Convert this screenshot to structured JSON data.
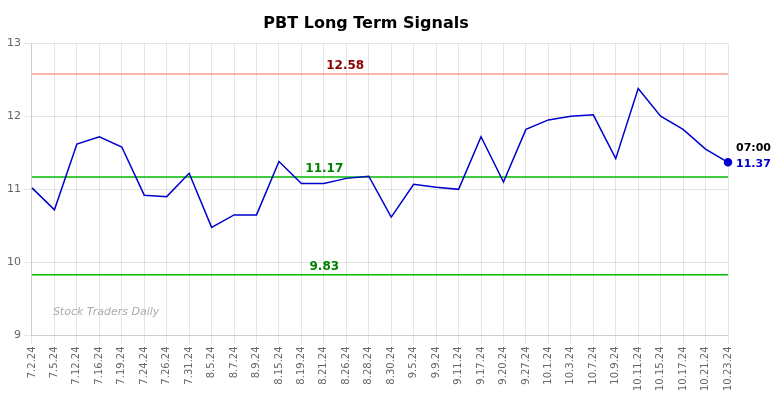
{
  "chart_data": {
    "type": "line",
    "title": "PBT Long Term Signals",
    "categories": [
      "7.2.24",
      "7.5.24",
      "7.12.24",
      "7.16.24",
      "7.19.24",
      "7.24.24",
      "7.26.24",
      "7.31.24",
      "8.5.24",
      "8.7.24",
      "8.9.24",
      "8.15.24",
      "8.19.24",
      "8.21.24",
      "8.26.24",
      "8.28.24",
      "8.30.24",
      "9.5.24",
      "9.9.24",
      "9.11.24",
      "9.17.24",
      "9.20.24",
      "9.27.24",
      "10.1.24",
      "10.3.24",
      "10.7.24",
      "10.9.24",
      "10.11.24",
      "10.15.24",
      "10.17.24",
      "10.21.24",
      "10.23.24"
    ],
    "values": [
      11.02,
      10.72,
      11.62,
      11.72,
      11.58,
      10.92,
      10.9,
      11.22,
      10.48,
      10.65,
      10.65,
      11.38,
      11.08,
      11.08,
      11.15,
      11.18,
      10.62,
      11.07,
      11.03,
      11.0,
      11.72,
      11.1,
      11.82,
      11.95,
      12.0,
      12.02,
      11.42,
      12.38,
      12.0,
      11.82,
      11.55,
      11.37
    ],
    "color": "#0000cc",
    "ylim": [
      9,
      13
    ],
    "yticks": [
      9,
      10,
      11,
      12,
      13
    ],
    "grid": true,
    "reference_lines": [
      {
        "value": 12.58,
        "color": "#ff9999",
        "label_color": "darkred"
      },
      {
        "value": 11.17,
        "color": "#00bb00",
        "label_color": "green"
      },
      {
        "value": 9.83,
        "color": "#00bb00",
        "label_color": "green"
      }
    ],
    "annotations": [
      {
        "text": "07:00",
        "color": "black"
      },
      {
        "text": "11.37",
        "color": "#0000cc"
      }
    ],
    "watermark": "Stock Traders Daily"
  }
}
